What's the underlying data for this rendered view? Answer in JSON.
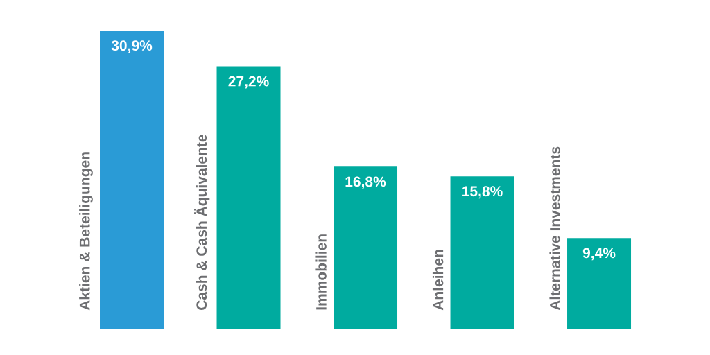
{
  "chart_data": {
    "type": "bar",
    "categories": [
      "Aktien & Beteiligungen",
      "Cash & Cash Äquivalente",
      "Immobilien",
      "Anleihen",
      "Alternative Investments"
    ],
    "values": [
      30.9,
      27.2,
      16.8,
      15.8,
      9.4
    ],
    "value_labels": [
      "30,9%",
      "27,2%",
      "16,8%",
      "15,8%",
      "9,4%"
    ],
    "colors": [
      "#2a9bd6",
      "#00ab9f",
      "#00ab9f",
      "#00ab9f",
      "#00ab9f"
    ]
  }
}
